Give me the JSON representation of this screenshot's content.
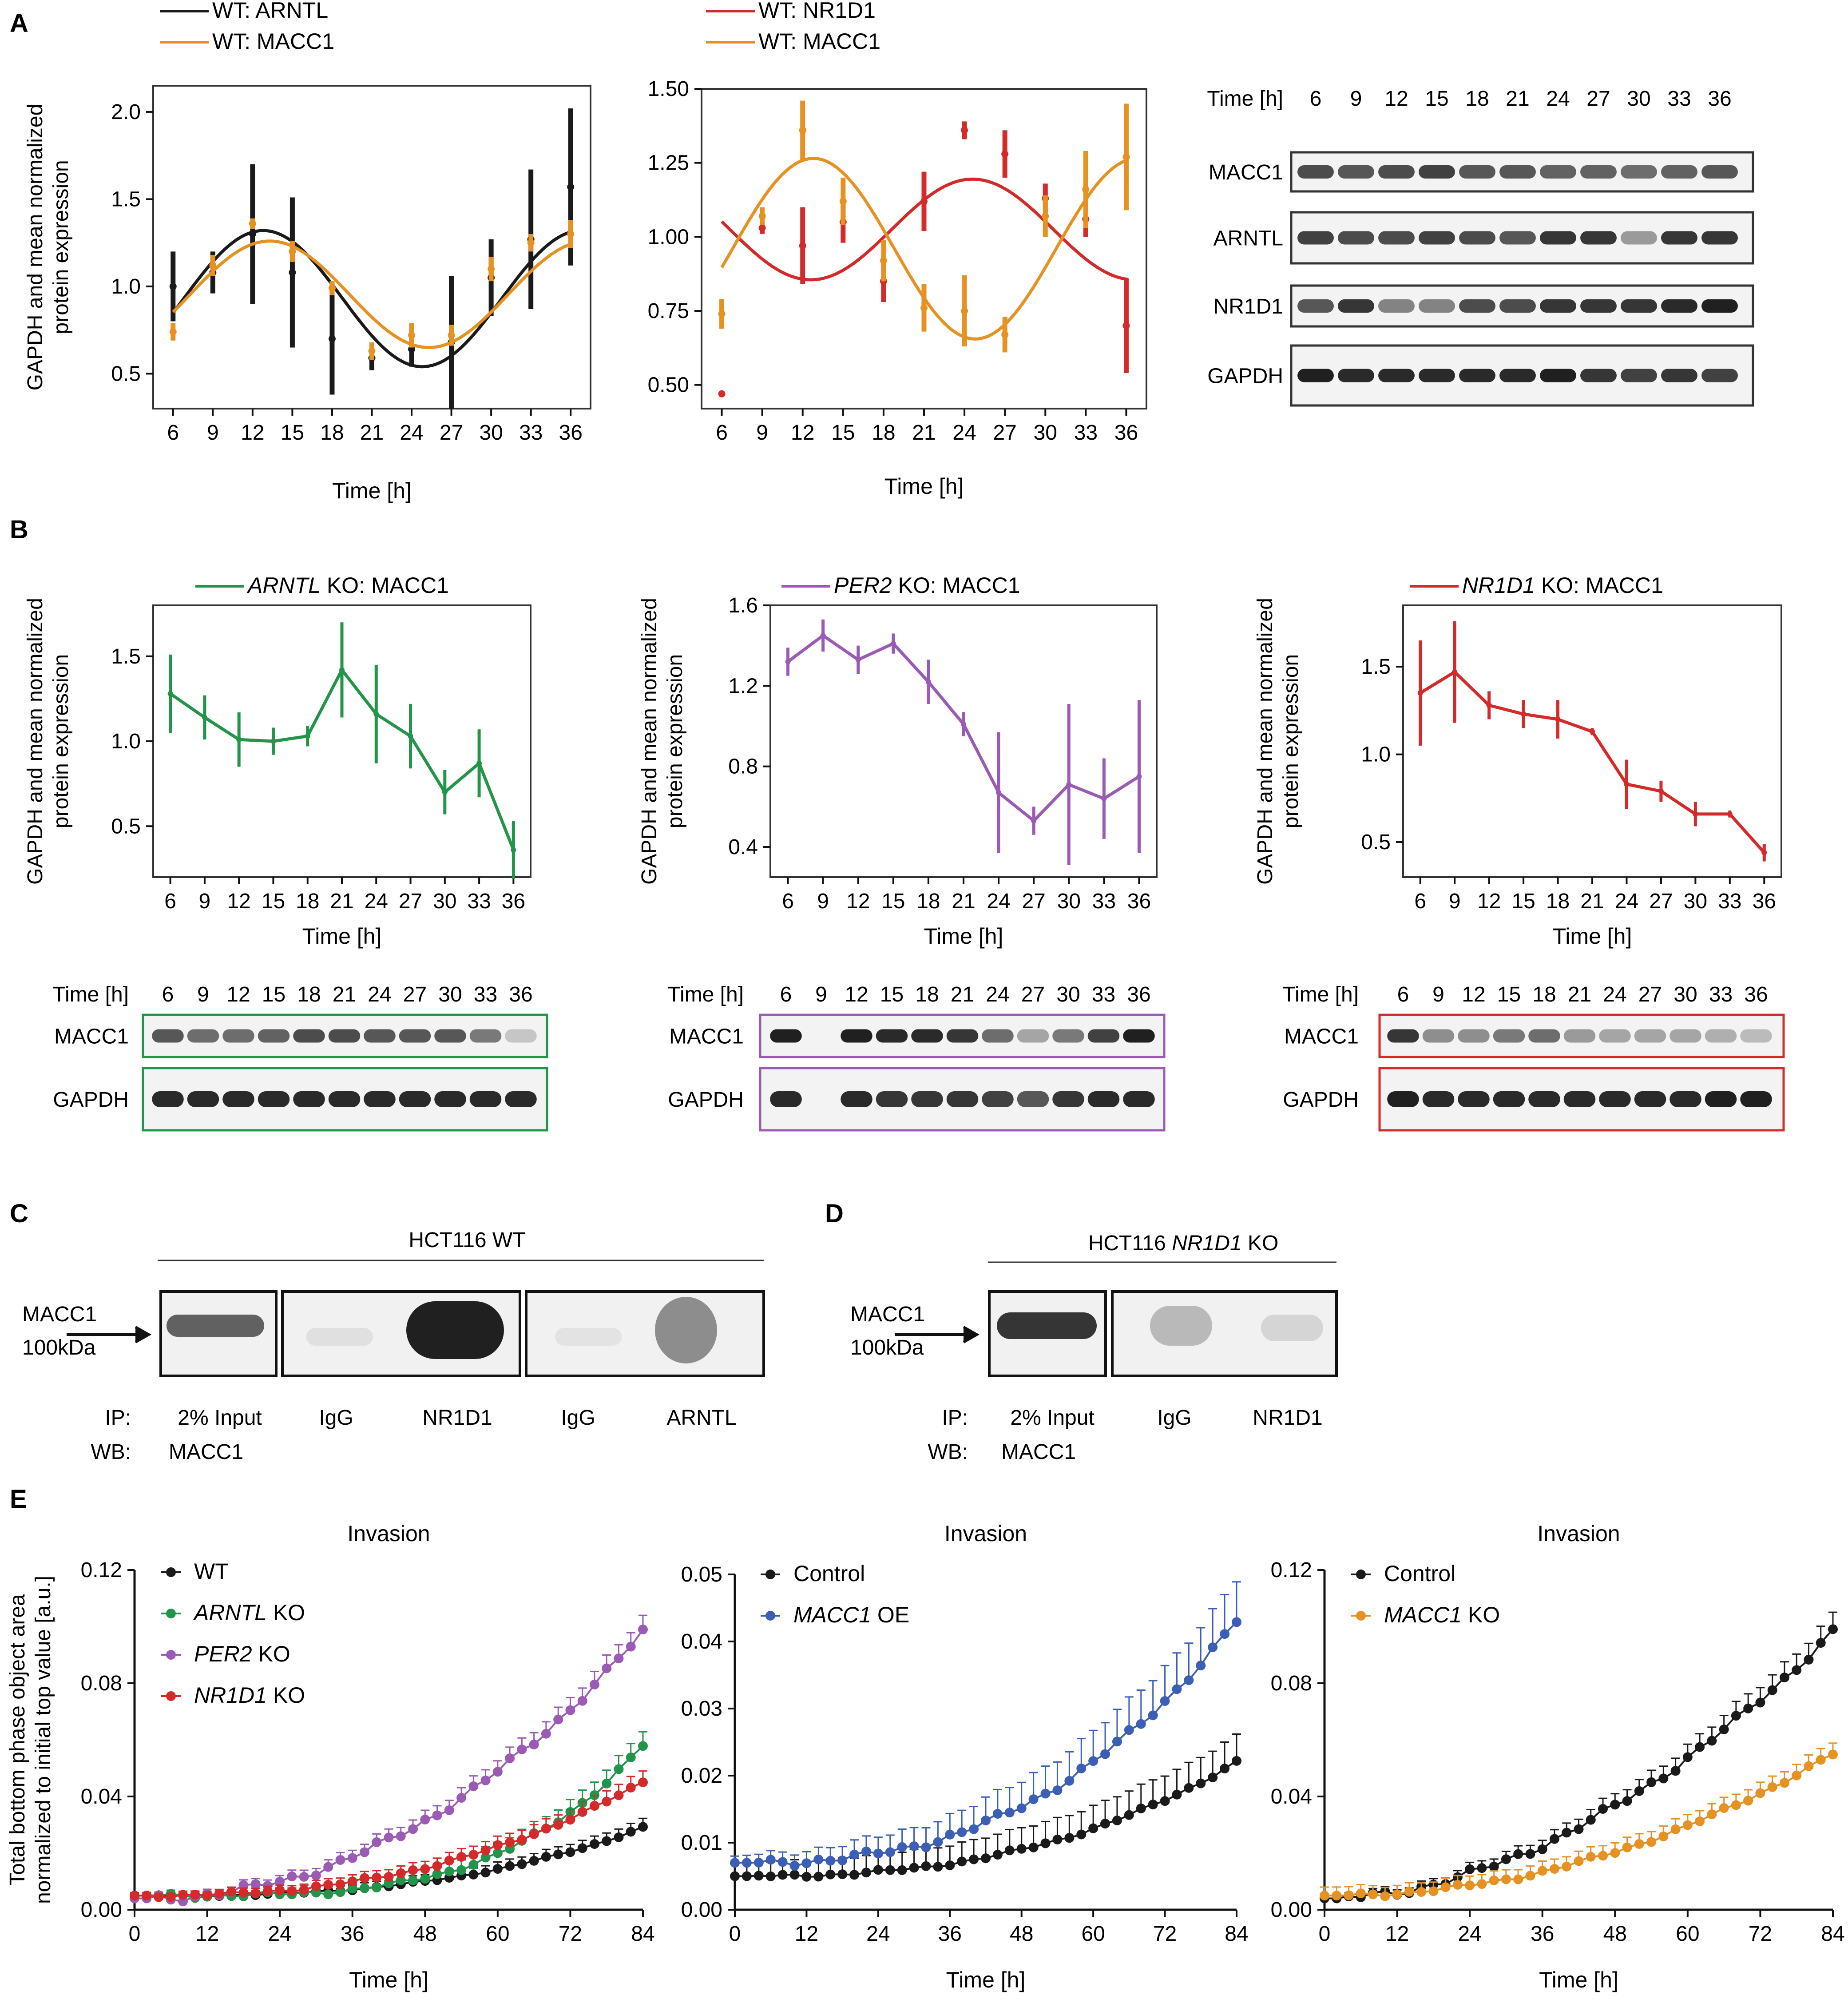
{
  "colors": {
    "black": "#1a1a1a",
    "orange": "#e69223",
    "red": "#d42a2a",
    "green": "#23954a",
    "purple": "#9a5bb5",
    "blue": "#3a5fb4"
  },
  "panel_letters": [
    "A",
    "B",
    "C",
    "D",
    "E"
  ],
  "blots": {
    "A": {
      "time_label": "Time [h]",
      "times": [
        "6",
        "9",
        "12",
        "15",
        "18",
        "21",
        "24",
        "27",
        "30",
        "33",
        "36"
      ],
      "rows": [
        "MACC1",
        "ARNTL",
        "NR1D1",
        "GAPDH"
      ]
    },
    "B1": {
      "time_label": "Time [h]",
      "times": [
        "6",
        "9",
        "12",
        "15",
        "18",
        "21",
        "24",
        "27",
        "30",
        "33",
        "36"
      ],
      "rows": [
        "MACC1",
        "GAPDH"
      ]
    },
    "B2": {
      "time_label": "Time [h]",
      "times": [
        "6",
        "9",
        "12",
        "15",
        "18",
        "21",
        "24",
        "27",
        "30",
        "33",
        "36"
      ],
      "rows": [
        "MACC1",
        "GAPDH"
      ]
    },
    "B3": {
      "time_label": "Time [h]",
      "times": [
        "6",
        "9",
        "12",
        "15",
        "18",
        "21",
        "24",
        "27",
        "30",
        "33",
        "36"
      ],
      "rows": [
        "MACC1",
        "GAPDH"
      ]
    }
  },
  "ip": {
    "C": {
      "title": "HCT116 WT",
      "band_label": [
        "MACC1",
        "100kDa"
      ],
      "ip_label": "IP:",
      "wb_label": "WB:",
      "lanes": [
        "2% Input",
        "IgG",
        "NR1D1",
        "IgG",
        "ARNTL"
      ],
      "wb_lane": "MACC1"
    },
    "D": {
      "title_pre": "HCT116 ",
      "title_italic": "NR1D1",
      "title_post": " KO",
      "band_label": [
        "MACC1",
        "100kDa"
      ],
      "ip_label": "IP:",
      "wb_label": "WB:",
      "lanes": [
        "2% Input",
        "IgG",
        "NR1D1"
      ],
      "wb_lane": "MACC1"
    }
  },
  "chart_data": [
    {
      "id": "A1",
      "type": "line",
      "xlabel": "Time [h]",
      "ylabel": [
        "GAPDH and mean normalized",
        "protein expression"
      ],
      "x": [
        6,
        9,
        12,
        15,
        18,
        21,
        24,
        27,
        30,
        33,
        36
      ],
      "xlim": [
        4.5,
        37.5
      ],
      "ylim": [
        0.3,
        2.15
      ],
      "yticks": [
        0.5,
        1.0,
        1.5,
        2.0
      ],
      "ytick_labels": [
        "0.5",
        "1.0",
        "1.5",
        "2.0"
      ],
      "legend": [
        {
          "text": "WT: ARNTL",
          "color": "#1a1a1a"
        },
        {
          "text": "WT: MACC1",
          "color": "#e69223"
        }
      ],
      "series": [
        {
          "name": "WT: ARNTL",
          "color": "#1a1a1a",
          "values": [
            1.0,
            1.08,
            1.3,
            1.08,
            0.7,
            0.59,
            0.64,
            0.68,
            1.05,
            1.27,
            1.57
          ],
          "errors": [
            0.2,
            0.12,
            0.4,
            0.43,
            0.32,
            0.07,
            0.1,
            0.38,
            0.22,
            0.4,
            0.45
          ],
          "fit": {
            "mean": 0.93,
            "amp": 0.39,
            "phase": 12.8,
            "period": 24
          }
        },
        {
          "name": "WT: MACC1",
          "color": "#e69223",
          "values": [
            0.74,
            1.12,
            1.36,
            1.2,
            0.99,
            0.63,
            0.72,
            0.72,
            1.1,
            1.25,
            1.3
          ],
          "errors": [
            0.05,
            0.06,
            0.03,
            0.06,
            0.04,
            0.05,
            0.07,
            0.06,
            0.07,
            0.05,
            0.08
          ],
          "fit": {
            "mean": 0.955,
            "amp": 0.305,
            "phase": 13.3,
            "period": 24
          }
        }
      ]
    },
    {
      "id": "A2",
      "type": "line",
      "xlabel": "Time [h]",
      "ylabel": null,
      "x": [
        6,
        9,
        12,
        15,
        18,
        21,
        24,
        27,
        30,
        33,
        36
      ],
      "xlim": [
        4.5,
        37.5
      ],
      "ylim": [
        0.42,
        1.5
      ],
      "yticks": [
        0.5,
        0.75,
        1.0,
        1.25,
        1.5
      ],
      "ytick_labels": [
        "0.50",
        "0.75",
        "1.00",
        "1.25",
        "1.50"
      ],
      "legend": [
        {
          "text": "WT: NR1D1",
          "color": "#d42a2a"
        },
        {
          "text": "WT: MACC1",
          "color": "#e69223"
        }
      ],
      "series": [
        {
          "name": "WT: NR1D1",
          "color": "#d42a2a",
          "values": [
            0.47,
            1.03,
            0.97,
            1.05,
            0.85,
            1.12,
            1.36,
            1.28,
            1.13,
            1.06,
            0.7
          ],
          "errors": [
            0.01,
            0.02,
            0.13,
            0.07,
            0.07,
            0.1,
            0.03,
            0.08,
            0.05,
            0.06,
            0.16
          ],
          "fit": {
            "mean": 1.025,
            "amp": 0.17,
            "phase": 24.6,
            "period": 24
          }
        },
        {
          "name": "WT: MACC1",
          "color": "#e69223",
          "values": [
            0.74,
            1.07,
            1.36,
            1.12,
            0.92,
            0.76,
            0.75,
            0.67,
            1.07,
            1.16,
            1.27
          ],
          "errors": [
            0.05,
            0.03,
            0.1,
            0.08,
            0.07,
            0.08,
            0.12,
            0.06,
            0.07,
            0.13,
            0.18
          ],
          "fit": {
            "mean": 0.96,
            "amp": 0.305,
            "phase": 12.8,
            "period": 24
          }
        }
      ]
    },
    {
      "id": "B1",
      "type": "line",
      "xlabel": "Time [h]",
      "ylabel": [
        "GAPDH and mean normalized",
        "protein expression"
      ],
      "x": [
        6,
        9,
        12,
        15,
        18,
        21,
        24,
        27,
        30,
        33,
        36
      ],
      "xlim": [
        4.5,
        37.5
      ],
      "ylim": [
        0.2,
        1.8
      ],
      "yticks": [
        0.5,
        1.0,
        1.5
      ],
      "ytick_labels": [
        "0.5",
        "1.0",
        "1.5"
      ],
      "legend": [
        {
          "text_italic": "ARNTL",
          "text": " KO: MACC1",
          "color": "#23954a"
        }
      ],
      "series": [
        {
          "name": "ARNTL KO: MACC1",
          "color": "#23954a",
          "values": [
            1.28,
            1.14,
            1.01,
            1.0,
            1.03,
            1.42,
            1.16,
            1.03,
            0.7,
            0.87,
            0.36
          ],
          "errors": [
            0.23,
            0.13,
            0.16,
            0.08,
            0.06,
            0.28,
            0.29,
            0.19,
            0.13,
            0.2,
            0.17
          ]
        }
      ]
    },
    {
      "id": "B2",
      "type": "line",
      "xlabel": "Time [h]",
      "ylabel": [
        "GAPDH and mean normalized",
        "protein expression"
      ],
      "x": [
        6,
        9,
        12,
        15,
        18,
        21,
        24,
        27,
        30,
        33,
        36
      ],
      "xlim": [
        4.5,
        37.5
      ],
      "ylim": [
        0.25,
        1.6
      ],
      "yticks": [
        0.4,
        0.8,
        1.2,
        1.6
      ],
      "ytick_labels": [
        "0.4",
        "0.8",
        "1.2",
        "1.6"
      ],
      "legend": [
        {
          "text_italic": "PER2",
          "text": " KO: MACC1",
          "color": "#9a5bb5"
        }
      ],
      "series": [
        {
          "name": "PER2 KO: MACC1",
          "color": "#9a5bb5",
          "values": [
            1.32,
            1.45,
            1.33,
            1.41,
            1.22,
            1.01,
            0.67,
            0.53,
            0.71,
            0.64,
            0.75
          ],
          "errors": [
            0.07,
            0.08,
            0.07,
            0.05,
            0.11,
            0.06,
            0.3,
            0.07,
            0.4,
            0.2,
            0.38
          ]
        }
      ]
    },
    {
      "id": "B3",
      "type": "line",
      "xlabel": "Time [h]",
      "ylabel": [
        "GAPDH and mean normalized",
        "protein expression"
      ],
      "x": [
        6,
        9,
        12,
        15,
        18,
        21,
        24,
        27,
        30,
        33,
        36
      ],
      "xlim": [
        4.5,
        37.5
      ],
      "ylim": [
        0.3,
        1.85
      ],
      "yticks": [
        0.5,
        1.0,
        1.5
      ],
      "ytick_labels": [
        "0.5",
        "1.0",
        "1.5"
      ],
      "legend": [
        {
          "text_italic": "NR1D1",
          "text": " KO: MACC1",
          "color": "#d42a2a"
        }
      ],
      "series": [
        {
          "name": "NR1D1 KO: MACC1",
          "color": "#d42a2a",
          "values": [
            1.35,
            1.47,
            1.28,
            1.23,
            1.2,
            1.13,
            0.83,
            0.79,
            0.66,
            0.66,
            0.44
          ],
          "errors": [
            0.3,
            0.29,
            0.08,
            0.08,
            0.11,
            0.02,
            0.14,
            0.06,
            0.07,
            0.02,
            0.05
          ]
        }
      ]
    },
    {
      "id": "E1",
      "type": "line",
      "markers": true,
      "title": "Invasion",
      "xlabel": "Time [h]",
      "ylabel": [
        "Total bottom phase object area",
        "normalized to initial top value [a.u.]"
      ],
      "xlim": [
        0,
        84
      ],
      "ylim": [
        0,
        0.12
      ],
      "xticks": [
        0,
        12,
        24,
        36,
        48,
        60,
        72,
        84
      ],
      "yticks": [
        0,
        0.04,
        0.08,
        0.12
      ],
      "ytick_labels": [
        "0.00",
        "0.04",
        "0.08",
        "0.12"
      ],
      "legend": [
        {
          "text": "WT",
          "color": "#1a1a1a"
        },
        {
          "text_italic": "ARNTL",
          "text": " KO",
          "color": "#23954a"
        },
        {
          "text_italic": "PER2",
          "text": " KO",
          "color": "#9a5bb5"
        },
        {
          "text_italic": "NR1D1",
          "text": " KO",
          "color": "#d42a2a"
        }
      ],
      "series": [
        {
          "name": "WT",
          "color": "#1a1a1a",
          "start": 0.005,
          "end": 0.029,
          "shape": 2.8,
          "err": 0.003,
          "start_err": 0.001
        },
        {
          "name": "ARNTL KO",
          "color": "#23954a",
          "start": 0.005,
          "end": 0.058,
          "shape": 3.8,
          "err": 0.005,
          "start_err": 0.001
        },
        {
          "name": "PER2 KO",
          "color": "#9a5bb5",
          "start": 0.004,
          "end": 0.098,
          "shape": 2.2,
          "err": 0.005,
          "start_err": 0.001
        },
        {
          "name": "NR1D1 KO",
          "color": "#d42a2a",
          "start": 0.005,
          "end": 0.045,
          "shape": 2.5,
          "err": 0.004,
          "start_err": 0.001
        }
      ]
    },
    {
      "id": "E2",
      "type": "line",
      "markers": true,
      "title": "Invasion",
      "xlabel": "Time [h]",
      "ylabel": null,
      "xlim": [
        0,
        84
      ],
      "ylim": [
        0,
        0.05
      ],
      "xticks": [
        0,
        12,
        24,
        36,
        48,
        60,
        72,
        84
      ],
      "yticks": [
        0,
        0.01,
        0.02,
        0.03,
        0.04,
        0.05
      ],
      "ytick_labels": [
        "0.00",
        "0.01",
        "0.02",
        "0.03",
        "0.04",
        "0.05"
      ],
      "legend": [
        {
          "text": "Control",
          "color": "#1a1a1a"
        },
        {
          "text_italic": "MACC1",
          "text": " OE",
          "color": "#3a5fb4"
        }
      ],
      "series": [
        {
          "name": "Control",
          "color": "#1a1a1a",
          "start": 0.005,
          "end": 0.022,
          "shape": 2.6,
          "err": 0.004,
          "start_err": 0.002
        },
        {
          "name": "MACC1 OE",
          "color": "#3a5fb4",
          "start": 0.007,
          "end": 0.043,
          "shape": 2.6,
          "err": 0.006,
          "start_err": 0.001
        }
      ]
    },
    {
      "id": "E3",
      "type": "line",
      "markers": true,
      "title": "Invasion",
      "xlabel": "Time [h]",
      "ylabel": null,
      "xlim": [
        0,
        84
      ],
      "ylim": [
        0,
        0.12
      ],
      "xticks": [
        0,
        12,
        24,
        36,
        48,
        60,
        72,
        84
      ],
      "yticks": [
        0,
        0.04,
        0.08,
        0.12
      ],
      "ytick_labels": [
        "0.00",
        "0.04",
        "0.08",
        "0.12"
      ],
      "legend": [
        {
          "text": "Control",
          "color": "#1a1a1a"
        },
        {
          "text_italic": "MACC1",
          "text": " KO",
          "color": "#e69223"
        }
      ],
      "series": [
        {
          "name": "Control",
          "color": "#1a1a1a",
          "start": 0.004,
          "end": 0.098,
          "shape": 1.9,
          "err": 0.006,
          "start_err": 0.001
        },
        {
          "name": "MACC1 KO",
          "color": "#e69223",
          "start": 0.005,
          "end": 0.055,
          "shape": 2.1,
          "err": 0.004,
          "start_err": 0.003
        }
      ]
    }
  ]
}
